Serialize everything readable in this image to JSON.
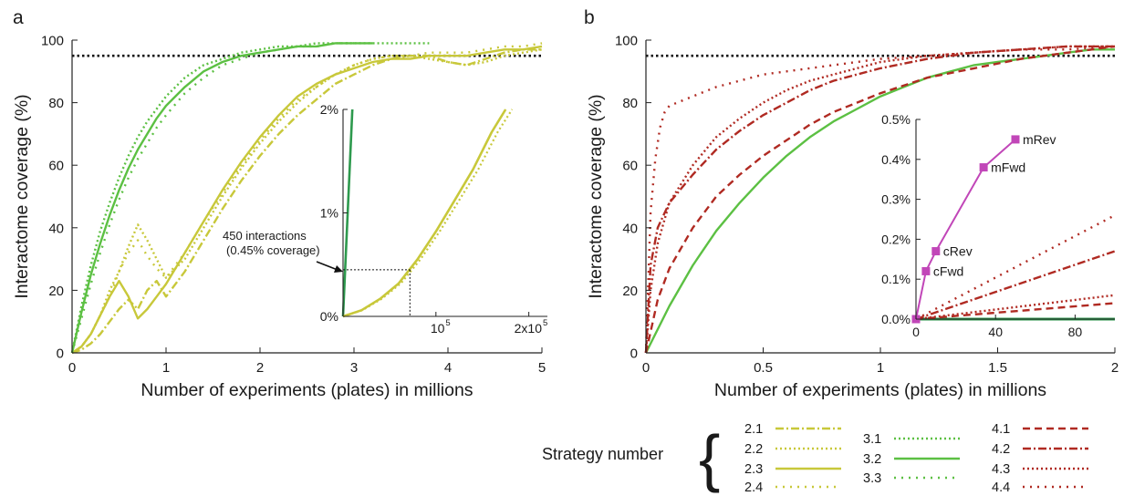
{
  "panels": {
    "a_letter": "a",
    "b_letter": "b"
  },
  "colors": {
    "yellow": "#c8c83a",
    "green": "#5cc043",
    "green_dark": "#2e9a4e",
    "red": "#b02a22",
    "magenta": "#c146b8"
  },
  "chart_data": [
    {
      "id": "panel-a-main",
      "type": "line",
      "xlabel": "Number of experiments (plates) in millions",
      "ylabel": "Interactome coverage (%)",
      "xlim": [
        0,
        5
      ],
      "ylim": [
        0,
        100
      ],
      "xticks": [
        "0",
        "1",
        "2",
        "3",
        "4",
        "5"
      ],
      "yticks": [
        "0",
        "20",
        "40",
        "60",
        "80",
        "100"
      ],
      "reference_line": 95,
      "series": [
        {
          "name": "2.1",
          "style": "dashdot",
          "color": "yellow",
          "x": [
            0,
            0.1,
            0.2,
            0.3,
            0.4,
            0.5,
            0.6,
            0.7,
            0.8,
            0.9,
            1,
            1.2,
            1.4,
            1.6,
            1.8,
            2,
            2.2,
            2.4,
            2.6,
            2.8,
            3,
            3.2,
            3.4,
            3.6,
            3.8,
            4,
            4.2,
            4.4,
            4.6,
            4.8,
            5
          ],
          "y": [
            0,
            1,
            3,
            6,
            10,
            14,
            17,
            14,
            20,
            23,
            18,
            26,
            36,
            46,
            55,
            63,
            70,
            76,
            81,
            86,
            89,
            92,
            94,
            95,
            95,
            93,
            92,
            94,
            96,
            97,
            97
          ]
        },
        {
          "name": "2.2",
          "style": "dotted",
          "color": "yellow",
          "x": [
            0,
            0.1,
            0.2,
            0.3,
            0.4,
            0.5,
            0.6,
            0.7,
            0.8,
            0.9,
            1,
            1.2,
            1.4,
            1.6,
            1.8,
            2,
            2.2,
            2.4,
            2.6,
            2.8,
            3,
            3.2,
            3.4,
            3.6,
            3.8,
            4,
            4.2,
            4.4,
            4.6,
            4.8,
            5
          ],
          "y": [
            0,
            2,
            6,
            12,
            20,
            26,
            34,
            41,
            36,
            30,
            24,
            30,
            40,
            50,
            59,
            67,
            74,
            80,
            85,
            89,
            92,
            94,
            95,
            95,
            94,
            93,
            92,
            93,
            95,
            96,
            97
          ]
        },
        {
          "name": "2.3",
          "style": "solid",
          "color": "yellow",
          "x": [
            0,
            0.1,
            0.2,
            0.3,
            0.4,
            0.5,
            0.6,
            0.7,
            0.8,
            0.9,
            1,
            1.2,
            1.4,
            1.6,
            1.8,
            2,
            2.2,
            2.4,
            2.6,
            2.8,
            3,
            3.2,
            3.4,
            3.6,
            3.8,
            4,
            4.2,
            4.4,
            4.6,
            4.8,
            5
          ],
          "y": [
            0,
            2,
            6,
            12,
            18,
            23,
            18,
            11,
            14,
            18,
            22,
            32,
            42,
            52,
            61,
            69,
            76,
            82,
            86,
            89,
            91,
            93,
            94,
            94,
            95,
            95,
            95,
            96,
            97,
            97,
            98
          ]
        },
        {
          "name": "2.4",
          "style": "sparse-dotted",
          "color": "yellow",
          "x": [
            0,
            0.1,
            0.2,
            0.3,
            0.4,
            0.5,
            0.6,
            0.7,
            0.8,
            0.9,
            1,
            1.2,
            1.4,
            1.6,
            1.8,
            2,
            2.2,
            2.4,
            2.6,
            2.8,
            3,
            3.2,
            3.4,
            3.6,
            3.8,
            4,
            4.2,
            4.4,
            4.6,
            4.8,
            5
          ],
          "y": [
            0,
            2,
            6,
            12,
            18,
            26,
            32,
            36,
            31,
            27,
            24,
            32,
            42,
            51,
            60,
            68,
            75,
            81,
            85,
            89,
            92,
            94,
            95,
            95,
            96,
            96,
            96,
            97,
            98,
            98,
            99
          ]
        },
        {
          "name": "3.1",
          "style": "dotted",
          "color": "green",
          "x": [
            0,
            0.1,
            0.2,
            0.3,
            0.4,
            0.5,
            0.6,
            0.7,
            0.8,
            0.9,
            1,
            1.2,
            1.4,
            1.6,
            1.8,
            2,
            2.2,
            2.4,
            2.6,
            2.8,
            3,
            3.2,
            3.4,
            3.6,
            3.8
          ],
          "y": [
            0,
            15,
            28,
            39,
            48,
            56,
            63,
            69,
            74,
            78,
            82,
            88,
            92,
            94,
            96,
            97,
            98,
            98,
            99,
            99,
            99,
            99,
            99,
            99,
            99
          ]
        },
        {
          "name": "3.2",
          "style": "solid",
          "color": "green",
          "x": [
            0,
            0.1,
            0.2,
            0.3,
            0.4,
            0.5,
            0.6,
            0.7,
            0.8,
            0.9,
            1,
            1.2,
            1.4,
            1.6,
            1.8,
            2,
            2.2,
            2.4,
            2.6,
            2.8,
            3,
            3.2
          ],
          "y": [
            0,
            13,
            25,
            35,
            44,
            52,
            59,
            65,
            70,
            75,
            79,
            85,
            90,
            93,
            95,
            96,
            97,
            98,
            98,
            99,
            99,
            99
          ]
        },
        {
          "name": "3.3",
          "style": "sparse-dotted",
          "color": "green",
          "x": [
            0,
            0.1,
            0.2,
            0.3,
            0.4,
            0.5,
            0.6,
            0.7,
            0.8,
            0.9,
            1,
            1.2,
            1.4,
            1.6,
            1.8,
            2,
            2.2,
            2.4,
            2.6,
            2.8,
            3
          ],
          "y": [
            0,
            11,
            22,
            32,
            41,
            49,
            56,
            62,
            67,
            72,
            76,
            83,
            88,
            92,
            94,
            96,
            97,
            98,
            98,
            99,
            99
          ]
        }
      ]
    },
    {
      "id": "panel-a-inset",
      "type": "line",
      "xlim": [
        0,
        220000
      ],
      "ylim": [
        0,
        2
      ],
      "xticks": [
        "10",
        "2x10"
      ],
      "xtick_exponent": "5",
      "yticks": [
        "0%",
        "1%",
        "2%"
      ],
      "annotation": [
        "450 interactions",
        "(0.45% coverage)"
      ],
      "annotation_point": {
        "x": 72000,
        "y": 0.45
      },
      "series": [
        {
          "name": "green",
          "color": "green_dark",
          "x": [
            0,
            10000
          ],
          "y": [
            0,
            2
          ]
        },
        {
          "name": "yellow",
          "color": "yellow",
          "x": [
            0,
            20000,
            40000,
            60000,
            80000,
            100000,
            120000,
            140000,
            160000,
            175000
          ],
          "y": [
            0,
            0.06,
            0.17,
            0.32,
            0.55,
            0.82,
            1.12,
            1.42,
            1.78,
            2.0
          ]
        }
      ]
    },
    {
      "id": "panel-b-main",
      "type": "line",
      "xlabel": "Number of experiments (plates) in millions",
      "ylabel": "Interactome coverage (%)",
      "xlim": [
        0,
        2
      ],
      "ylim": [
        0,
        100
      ],
      "xticks": [
        "0",
        "0.5",
        "1",
        "1.5",
        "2"
      ],
      "yticks": [
        "0",
        "20",
        "40",
        "60",
        "80",
        "100"
      ],
      "reference_line": 95,
      "series": [
        {
          "name": "3.2",
          "style": "solid",
          "color": "green",
          "x": [
            0,
            0.1,
            0.2,
            0.3,
            0.4,
            0.5,
            0.6,
            0.7,
            0.8,
            0.9,
            1,
            1.1,
            1.2,
            1.3,
            1.4,
            1.5,
            1.6,
            1.7,
            1.8,
            1.9,
            2
          ],
          "y": [
            0,
            15,
            28,
            39,
            48,
            56,
            63,
            69,
            74,
            78,
            82,
            85,
            88,
            90,
            92,
            93,
            94,
            95,
            96,
            97,
            97
          ]
        },
        {
          "name": "4.1",
          "style": "dashed",
          "color": "red",
          "x": [
            0,
            0.05,
            0.1,
            0.2,
            0.3,
            0.4,
            0.5,
            0.6,
            0.7,
            0.8,
            0.9,
            1,
            1.2,
            1.4,
            1.6,
            1.8,
            2
          ],
          "y": [
            0,
            17,
            27,
            40,
            50,
            57,
            63,
            68,
            73,
            77,
            80,
            83,
            88,
            91,
            94,
            96,
            98
          ]
        },
        {
          "name": "4.2",
          "style": "dashdot",
          "color": "red",
          "x": [
            0,
            0.02,
            0.05,
            0.1,
            0.2,
            0.3,
            0.4,
            0.5,
            0.6,
            0.7,
            0.8,
            0.9,
            1,
            1.2,
            1.4,
            1.6,
            1.8,
            2
          ],
          "y": [
            0,
            28,
            40,
            48,
            57,
            65,
            71,
            76,
            80,
            84,
            87,
            89,
            91,
            94,
            96,
            97,
            98,
            98
          ]
        },
        {
          "name": "4.3",
          "style": "dotted",
          "color": "red",
          "x": [
            0,
            0.02,
            0.05,
            0.1,
            0.2,
            0.3,
            0.4,
            0.5,
            0.6,
            0.7,
            0.8,
            0.9,
            1,
            1.2,
            1.4,
            1.6,
            1.8,
            2
          ],
          "y": [
            0,
            20,
            35,
            48,
            60,
            69,
            75,
            80,
            84,
            87,
            89,
            91,
            93,
            95,
            96,
            97,
            98,
            98
          ]
        },
        {
          "name": "4.4",
          "style": "sparse-dotted",
          "color": "red",
          "x": [
            0,
            0.02,
            0.04,
            0.06,
            0.08,
            0.1,
            0.2,
            0.3,
            0.4,
            0.5,
            0.6,
            0.8,
            1,
            1.2,
            1.4,
            1.6,
            1.8,
            2
          ],
          "y": [
            0,
            45,
            62,
            72,
            77,
            79,
            82,
            85,
            87,
            89,
            90,
            92,
            94,
            95,
            96,
            97,
            97,
            98
          ]
        }
      ]
    },
    {
      "id": "panel-b-inset",
      "type": "line",
      "xlim": [
        0,
        100
      ],
      "ylim": [
        0,
        0.5
      ],
      "xticks": [
        "0",
        "40",
        "80"
      ],
      "yticks": [
        "0.0%",
        "0.1%",
        "0.2%",
        "0.3%",
        "0.4%",
        "0.5%"
      ],
      "points": [
        {
          "label": "",
          "x": 0,
          "y": 0
        },
        {
          "label": "cFwd",
          "x": 5,
          "y": 0.12
        },
        {
          "label": "cRev",
          "x": 10,
          "y": 0.17
        },
        {
          "label": "mFwd",
          "x": 34,
          "y": 0.38
        },
        {
          "label": "mRev",
          "x": 50,
          "y": 0.45
        }
      ],
      "series": [
        {
          "name": "3.2",
          "style": "solid",
          "color": "green_dark",
          "x": [
            0,
            100
          ],
          "y": [
            0,
            0
          ]
        },
        {
          "name": "4.1",
          "style": "dashed",
          "color": "red",
          "x": [
            0,
            100
          ],
          "y": [
            0,
            0.04
          ]
        },
        {
          "name": "4.2",
          "style": "dashdot",
          "color": "red",
          "x": [
            0,
            100
          ],
          "y": [
            0,
            0.17
          ]
        },
        {
          "name": "4.3",
          "style": "dotted",
          "color": "red",
          "x": [
            0,
            100
          ],
          "y": [
            0,
            0.06
          ]
        },
        {
          "name": "4.4",
          "style": "sparse-dotted",
          "color": "red",
          "x": [
            0,
            100
          ],
          "y": [
            0,
            0.26
          ]
        }
      ]
    }
  ],
  "legend": {
    "title": "Strategy number",
    "groups": [
      [
        {
          "label": "2.1",
          "style": "dashdot",
          "color": "yellow"
        },
        {
          "label": "2.2",
          "style": "dotted",
          "color": "yellow"
        },
        {
          "label": "2.3",
          "style": "solid",
          "color": "yellow"
        },
        {
          "label": "2.4",
          "style": "sparse-dotted",
          "color": "yellow"
        }
      ],
      [
        {
          "label": "3.1",
          "style": "dotted",
          "color": "green"
        },
        {
          "label": "3.2",
          "style": "solid",
          "color": "green"
        },
        {
          "label": "3.3",
          "style": "sparse-dotted",
          "color": "green"
        }
      ],
      [
        {
          "label": "4.1",
          "style": "dashed",
          "color": "red"
        },
        {
          "label": "4.2",
          "style": "dashdot",
          "color": "red"
        },
        {
          "label": "4.3",
          "style": "dotted",
          "color": "red"
        },
        {
          "label": "4.4",
          "style": "sparse-dotted",
          "color": "red"
        }
      ]
    ]
  }
}
